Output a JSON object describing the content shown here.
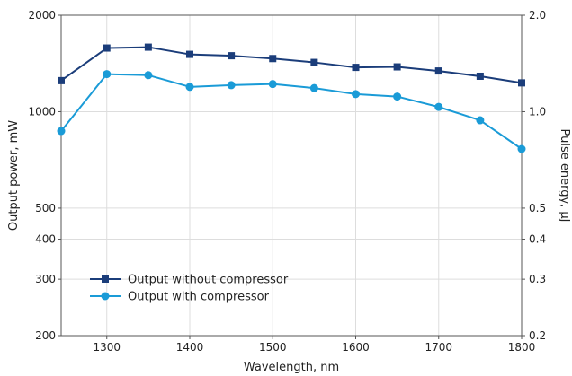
{
  "chart_data": {
    "type": "line",
    "title": "",
    "xlabel": "Wavelength, nm",
    "ylabel": "Output power, mW",
    "y2label": "Pulse energy, µJ",
    "xlim": [
      1245,
      1800
    ],
    "ylim": [
      200,
      2000
    ],
    "yscale": "log",
    "y2lim": [
      0.2,
      2.0
    ],
    "y2scale": "log",
    "grid": true,
    "legend_position": "bottom-left",
    "x_ticks": [
      1300,
      1400,
      1500,
      1600,
      1700,
      1800
    ],
    "x_tick_labels": [
      "1300",
      "1400",
      "1500",
      "1600",
      "1700",
      "1800"
    ],
    "y_ticks": [
      200,
      300,
      400,
      500,
      1000,
      2000
    ],
    "y_tick_labels": [
      "200",
      "300",
      "400",
      "500",
      "1000",
      "2000"
    ],
    "y2_ticks": [
      0.2,
      0.3,
      0.4,
      0.5,
      1.0,
      2.0
    ],
    "y2_tick_labels": [
      "0.2",
      "0.3",
      "0.4",
      "0.5",
      "1.0",
      "2.0"
    ],
    "x": [
      1245,
      1300,
      1350,
      1400,
      1450,
      1500,
      1550,
      1600,
      1650,
      1700,
      1750,
      1800
    ],
    "series": [
      {
        "name": "Output without compressor",
        "color": "#1b3d7a",
        "marker": "square",
        "values": [
          1250,
          1580,
          1590,
          1510,
          1495,
          1465,
          1425,
          1375,
          1380,
          1340,
          1290,
          1230
        ]
      },
      {
        "name": "Output with compressor",
        "color": "#1a9bd7",
        "marker": "circle",
        "values": [
          870,
          1310,
          1300,
          1195,
          1210,
          1220,
          1185,
          1135,
          1115,
          1035,
          940,
          765
        ]
      }
    ]
  }
}
